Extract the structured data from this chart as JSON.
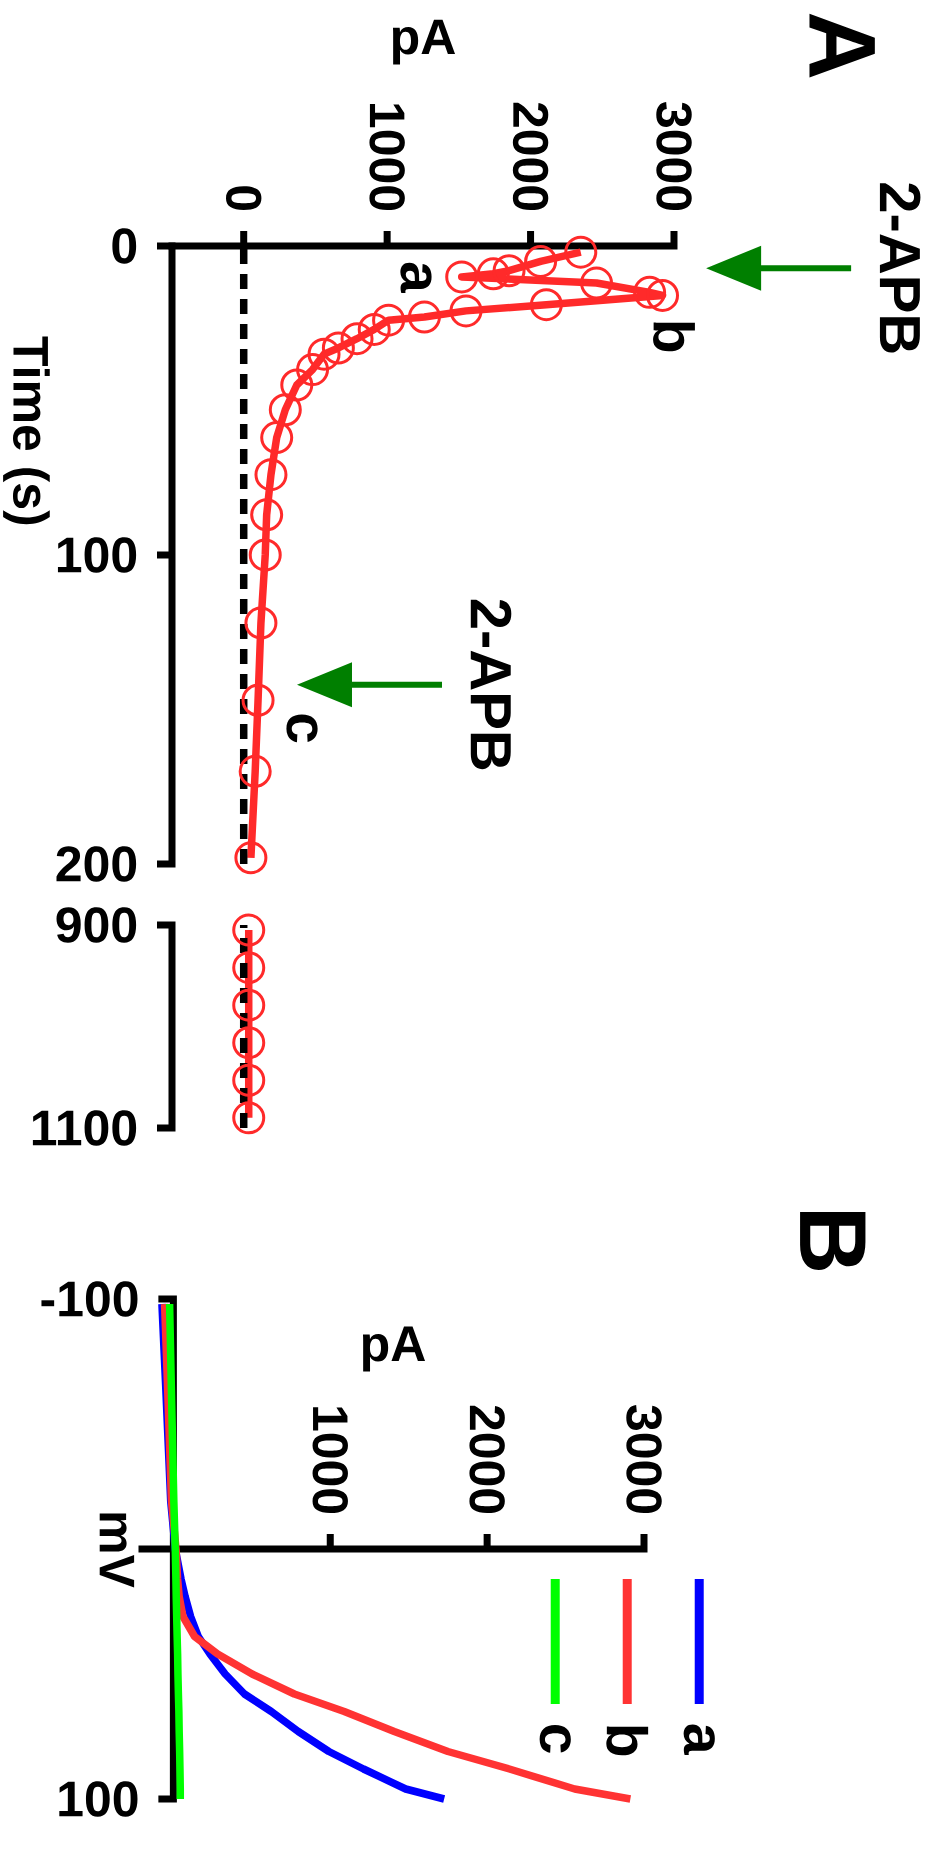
{
  "chart_data": [
    {
      "type": "line",
      "xlabel": "pA",
      "ylabel": "Time (s)",
      "marker": "circle",
      "x": [
        2350,
        2070,
        1850,
        1740,
        1520,
        2460,
        2830,
        2920,
        2110,
        1550,
        1260,
        1010,
        910,
        790,
        660,
        560,
        480,
        370,
        290,
        230,
        190,
        160,
        150,
        120,
        100,
        80,
        50
      ],
      "series": [
        {
          "color": "#ff2a2a",
          "values": [
            2,
            5,
            8,
            9,
            10,
            12,
            15,
            16,
            19,
            21,
            23,
            24,
            27,
            30,
            33,
            35,
            40,
            45,
            53,
            62,
            74,
            87,
            100,
            122,
            147,
            170,
            198
          ]
        }
      ],
      "xlim": [
        -500,
        3000
      ],
      "xticks": [
        0,
        1000,
        2000,
        3000
      ],
      "ylim": [
        200,
        0
      ],
      "yticks": [
        0,
        100,
        200
      ],
      "ref_lines": [
        {
          "axis": "x",
          "value": 0,
          "color": "#000000",
          "line_style": "dashed"
        }
      ],
      "annotations": [
        "A",
        "2-APB",
        "a",
        "b",
        "2-APB",
        "c"
      ]
    },
    {
      "type": "line",
      "marker": "circle",
      "tick_labels": "y",
      "x": [
        35,
        35,
        35,
        35,
        35,
        35
      ],
      "series": [
        {
          "color": "#ff2a2a",
          "values": [
            905,
            942,
            979,
            1016,
            1053,
            1090
          ]
        }
      ],
      "xlim": [
        -500,
        3000
      ],
      "ylim": [
        1100,
        900
      ],
      "yticks": [
        900,
        1100
      ],
      "ref_lines": [
        {
          "axis": "x",
          "value": 0,
          "color": "#000000",
          "line_style": "dashed"
        }
      ]
    },
    {
      "type": "line",
      "xlabel": "pA",
      "ylabel": "mV",
      "legend": "bottom right",
      "annotations": [
        "B"
      ],
      "series": [
        {
          "name": "a",
          "color": "#0000ff",
          "x": [
            -73,
            -49,
            -17,
            12,
            49,
            75,
            110,
            159,
            233,
            330,
            453,
            624,
            796,
            991,
            1212,
            1481,
            1726
          ],
          "values": [
            -98,
            -65,
            -19,
            0,
            12,
            19,
            27,
            35,
            42,
            50,
            58,
            65,
            73,
            81,
            88,
            96,
            100
          ]
        },
        {
          "name": "b",
          "color": "#ff3333",
          "x": [
            -56,
            -37,
            -12,
            17,
            27,
            37,
            61,
            135,
            282,
            502,
            771,
            1089,
            1408,
            1750,
            2142,
            2558,
            2913
          ],
          "values": [
            -98,
            -65,
            -19,
            0,
            12,
            19,
            27,
            35,
            42,
            50,
            58,
            65,
            73,
            81,
            88,
            96,
            100
          ]
        },
        {
          "name": "c",
          "color": "#00ff00",
          "x": [
            -24,
            -13,
            3,
            12,
            16,
            18,
            21,
            24,
            27,
            29,
            32,
            35,
            37,
            40,
            42,
            44,
            44
          ],
          "values": [
            -98,
            -65,
            -19,
            0,
            12,
            19,
            27,
            35,
            42,
            50,
            58,
            65,
            73,
            81,
            88,
            96,
            100
          ]
        }
      ],
      "xlim": [
        -200,
        3000
      ],
      "xticks": [
        1000,
        2000,
        3000
      ],
      "ylim": [
        100,
        -100
      ],
      "yticks": [
        -100,
        100
      ]
    }
  ]
}
